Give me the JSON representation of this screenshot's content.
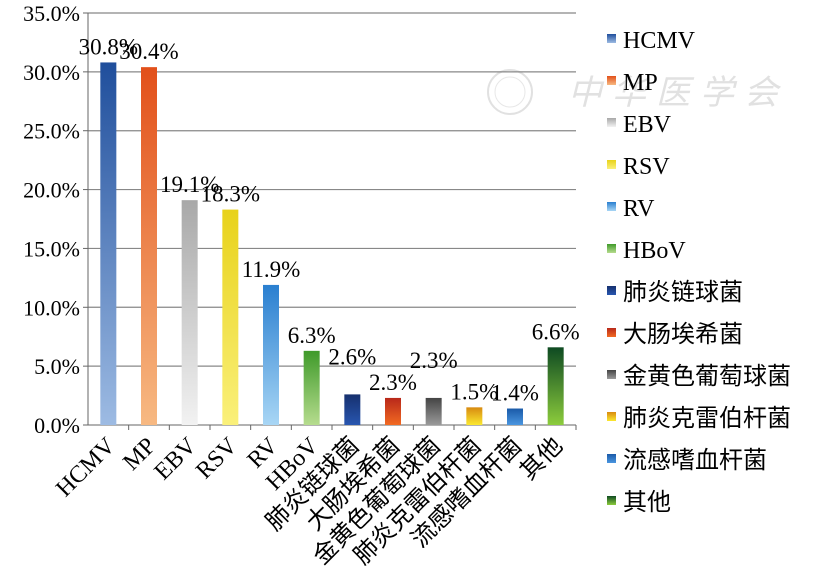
{
  "watermark": "中华医学会",
  "chart_data": {
    "type": "bar",
    "title": "",
    "xlabel": "",
    "ylabel": "",
    "ylim": [
      0,
      35
    ],
    "yticks": [
      "0.0%",
      "5.0%",
      "10.0%",
      "15.0%",
      "20.0%",
      "25.0%",
      "30.0%",
      "35.0%"
    ],
    "grid": true,
    "legend_position": "right",
    "categories": [
      "HCMV",
      "MP",
      "EBV",
      "RSV",
      "RV",
      "HBoV",
      "肺炎链球菌",
      "大肠埃希菌",
      "金黄色葡萄球菌",
      "肺炎克雷伯杆菌",
      "流感嗜血杆菌",
      "其他"
    ],
    "values": [
      30.8,
      30.4,
      19.1,
      18.3,
      11.9,
      6.3,
      2.6,
      2.3,
      2.3,
      1.5,
      1.4,
      6.6
    ],
    "data_labels": [
      "30.8%",
      "30.4%",
      "19.1%",
      "18.3%",
      "11.9%",
      "6.3%",
      "2.6%",
      "2.3%",
      "2.3%",
      "1.5%",
      "1.4%",
      "6.6%"
    ],
    "colors": [
      [
        "#1f4e9c",
        "#9dbbe3"
      ],
      [
        "#e2501a",
        "#f7b982"
      ],
      [
        "#a8a8a8",
        "#f2f2f2"
      ],
      [
        "#e8d21a",
        "#faf07a"
      ],
      [
        "#2a7fd0",
        "#a8d6f5"
      ],
      [
        "#3f9a2a",
        "#b6dc8e"
      ],
      [
        "#16306e",
        "#2856b0"
      ],
      [
        "#b8281a",
        "#f26a22"
      ],
      [
        "#444444",
        "#9a9a9a"
      ],
      [
        "#d88a10",
        "#fbe830"
      ],
      [
        "#1a5aa8",
        "#4a96e0"
      ],
      [
        "#0e4a22",
        "#8ccc3c"
      ]
    ]
  }
}
